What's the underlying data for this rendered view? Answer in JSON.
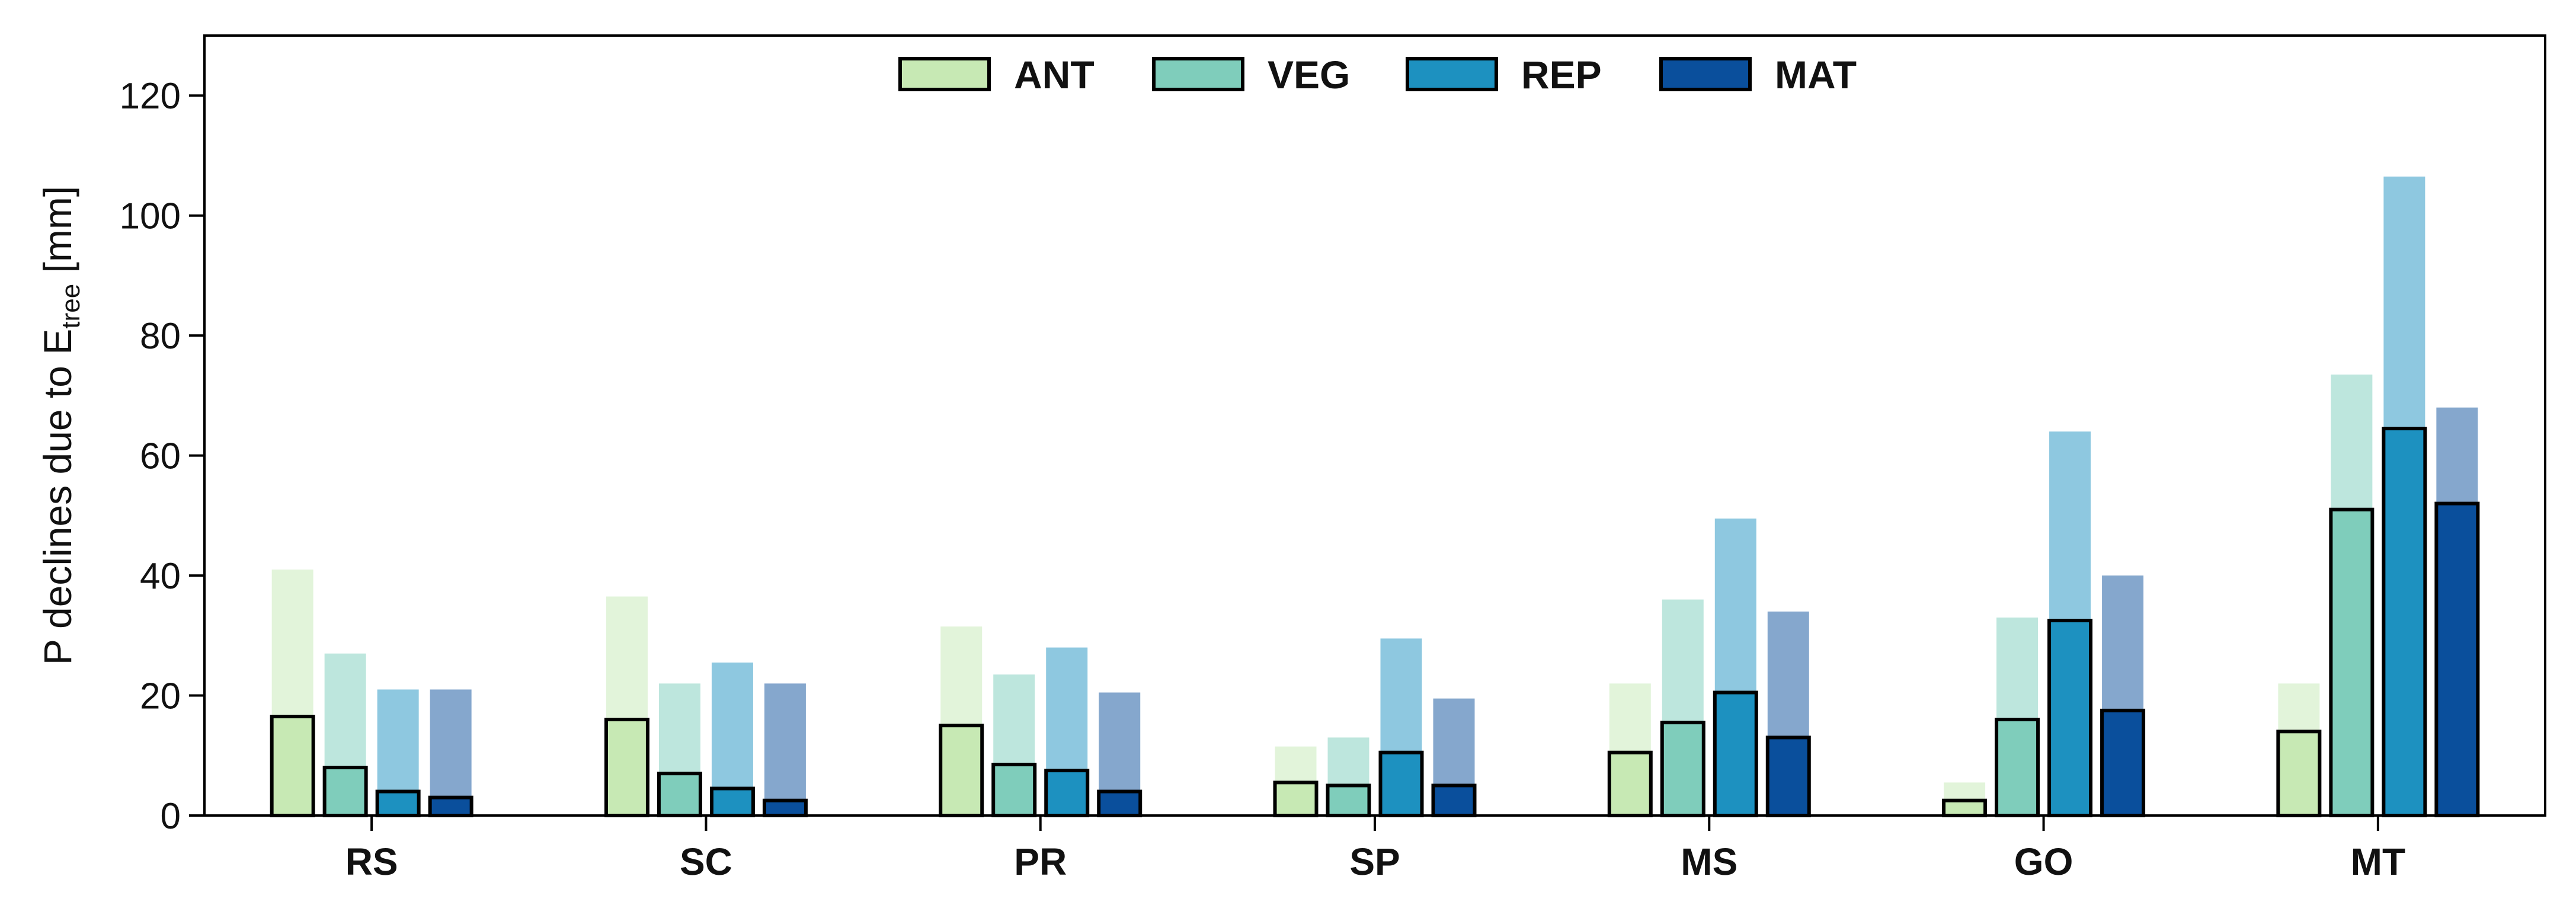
{
  "chart_data": {
    "type": "bar",
    "categories": [
      "RS",
      "SC",
      "PR",
      "SP",
      "MS",
      "GO",
      "MT"
    ],
    "ylabel_main": "P declines due to E",
    "ylabel_sub": "tree",
    "ylabel_unit": " [mm]",
    "xlabel": "",
    "ylim": [
      0,
      130
    ],
    "yticks": [
      "0",
      "20",
      "40",
      "60",
      "80",
      "100",
      "120"
    ],
    "grid": false,
    "legend_position": "top-center",
    "series": [
      {
        "name": "ANT",
        "color": "#c7e9b4",
        "light_color": "#e2f4da",
        "values": [
          16.5,
          16,
          15,
          5.5,
          10.5,
          2.5,
          14
        ],
        "upper_values": [
          41,
          36.5,
          31.5,
          11.5,
          22,
          5.5,
          22
        ]
      },
      {
        "name": "VEG",
        "color": "#7fcdbb",
        "light_color": "#bde6dd",
        "values": [
          8,
          7,
          8.5,
          5,
          15.5,
          16,
          51
        ],
        "upper_values": [
          27,
          22,
          23.5,
          13,
          36,
          33,
          73.5
        ]
      },
      {
        "name": "REP",
        "color": "#1d91c0",
        "light_color": "#8ec8e0",
        "values": [
          4,
          4.5,
          7.5,
          10.5,
          20.5,
          32.5,
          64.5
        ],
        "upper_values": [
          21,
          25.5,
          28,
          29.5,
          49.5,
          64,
          106.5
        ]
      },
      {
        "name": "MAT",
        "color": "#0a4f9c",
        "light_color": "#85a7cd",
        "values": [
          3,
          2.5,
          4,
          5,
          13,
          17.5,
          52
        ],
        "upper_values": [
          21,
          22,
          20.5,
          19.5,
          34,
          40,
          68
        ]
      }
    ]
  }
}
